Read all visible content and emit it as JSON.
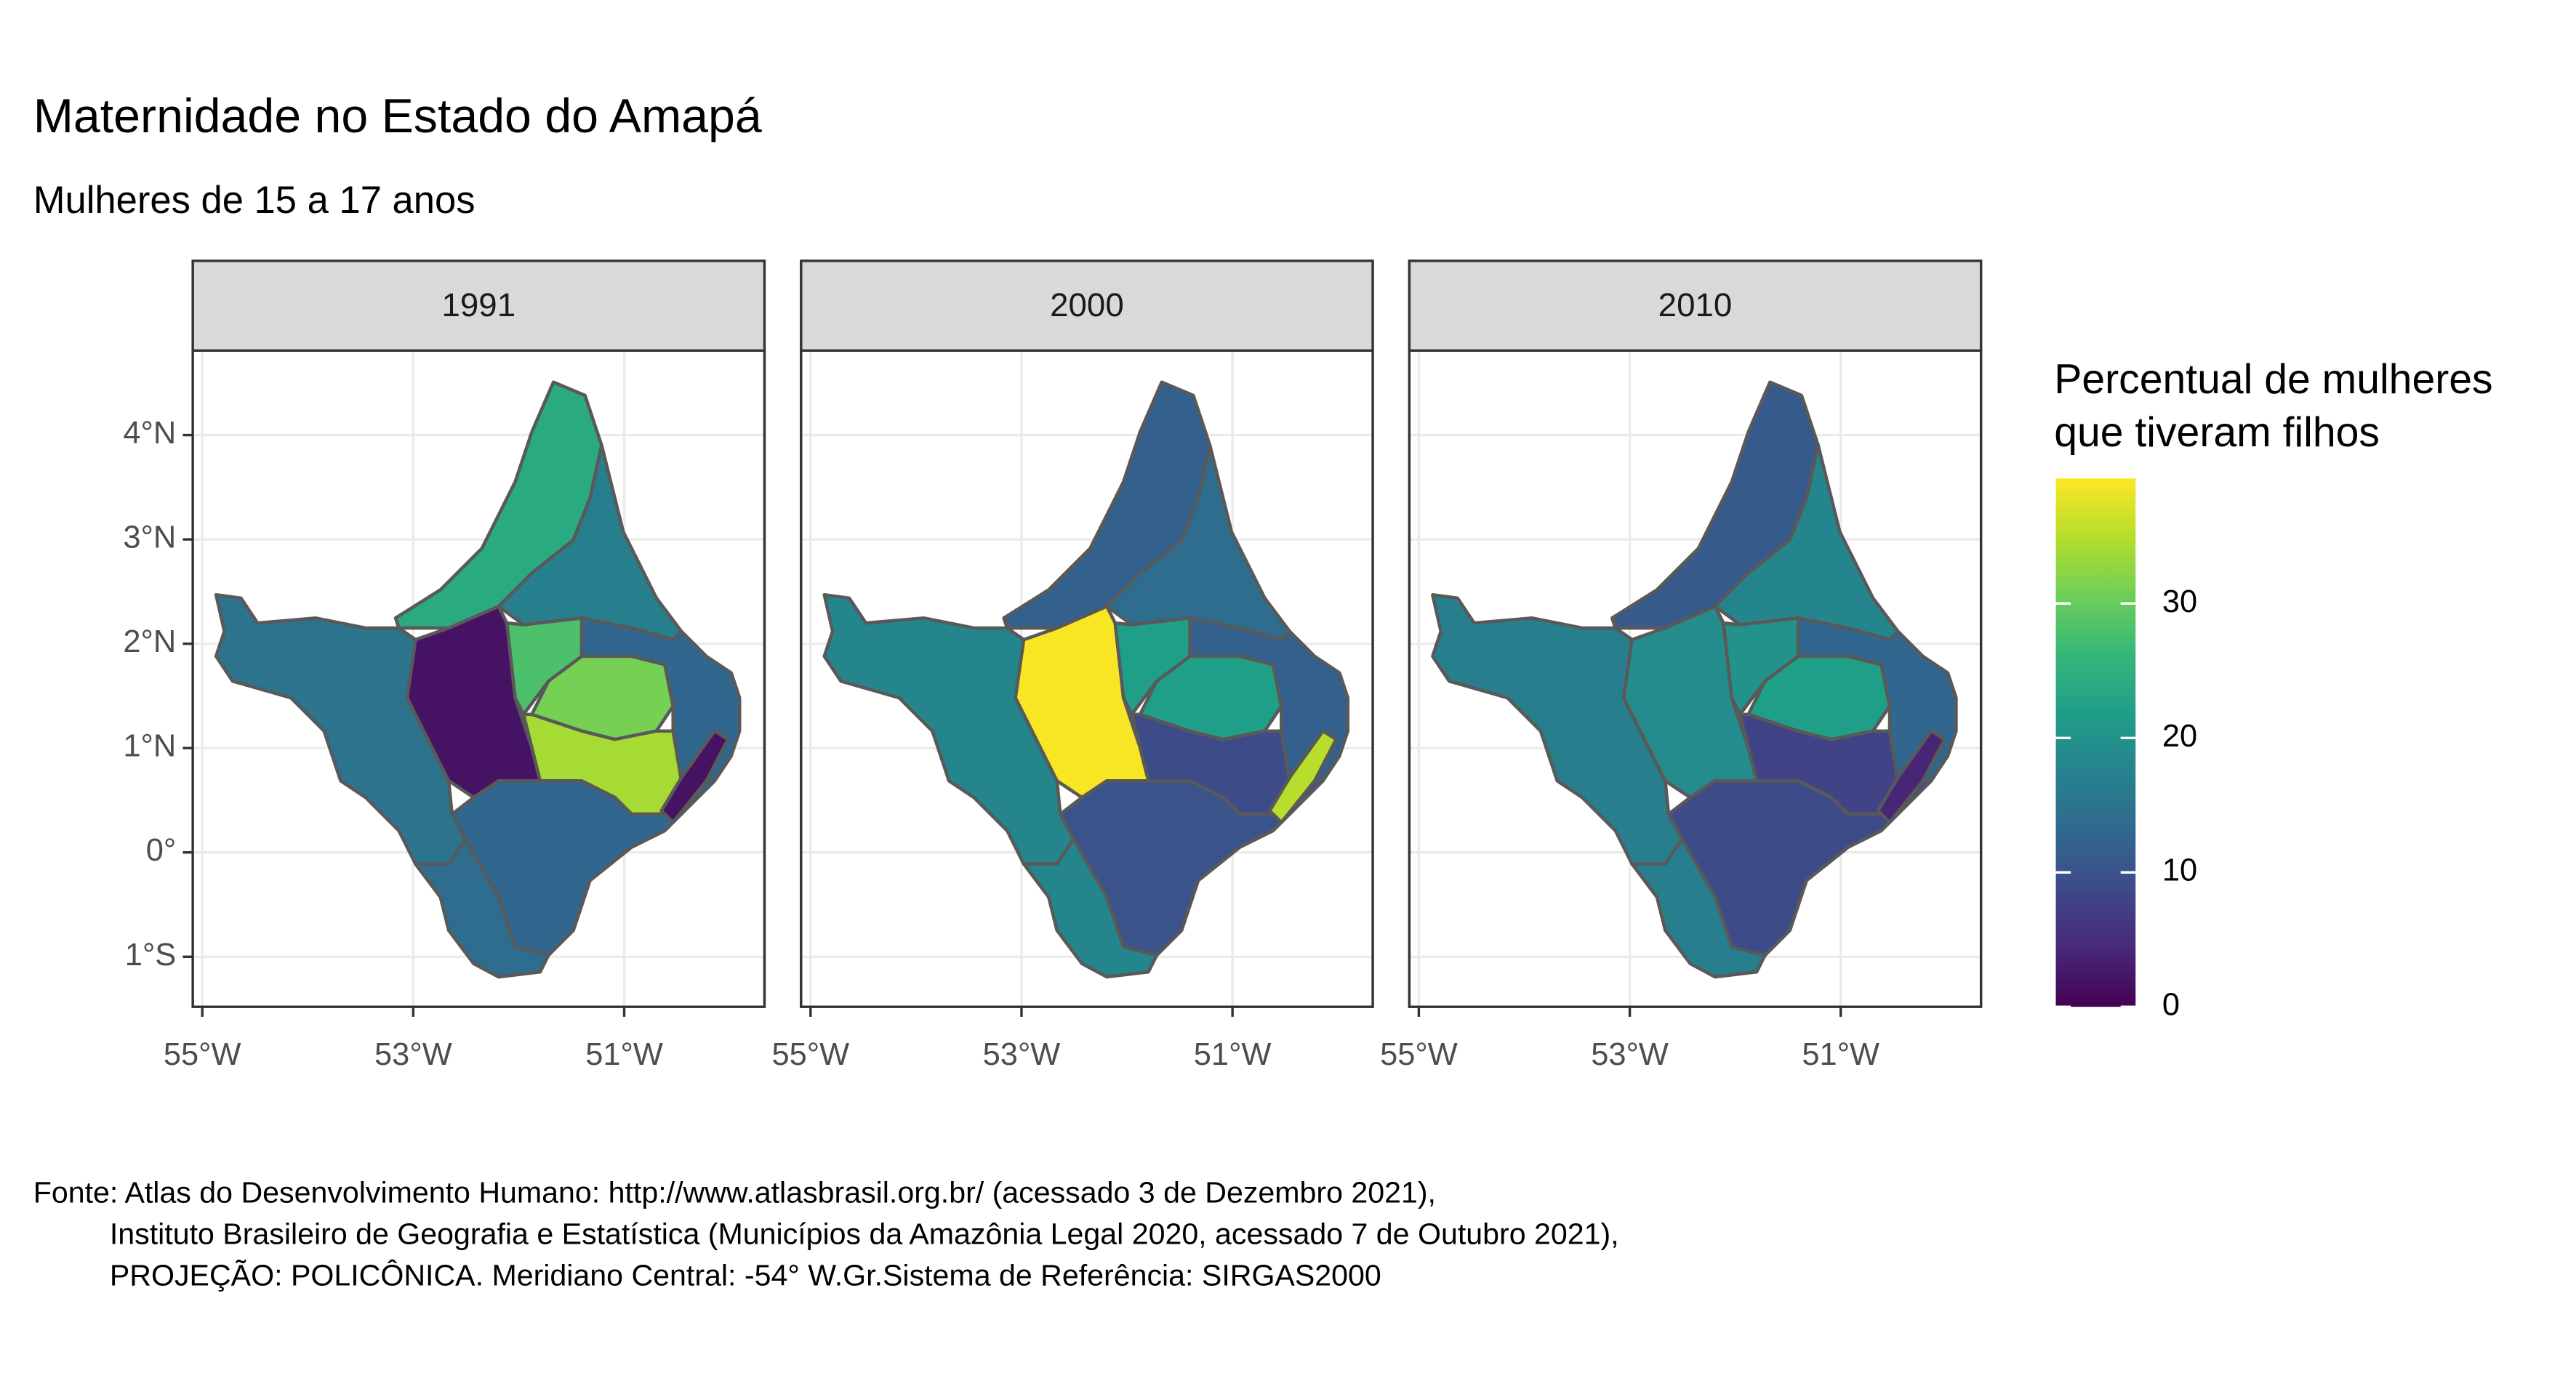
{
  "chart_data": {
    "type": "choropleth",
    "title": "Maternidade  no Estado do Amapá",
    "subtitle": "Mulheres de 15 a 17 anos",
    "facets": [
      {
        "label": "1991",
        "values": [
          24,
          17,
          15,
          2,
          28,
          31,
          13,
          34,
          13,
          14,
          2
        ]
      },
      {
        "label": "2000",
        "values": [
          12,
          14,
          18,
          39,
          22,
          22,
          12,
          9,
          10,
          18,
          35
        ]
      },
      {
        "label": "2010",
        "values": [
          11,
          18,
          17,
          19,
          20,
          22,
          13,
          8,
          9,
          17,
          4
        ]
      }
    ],
    "xlim": [
      -55.09,
      -49.67
    ],
    "xticks": [
      {
        "value": -55,
        "label": "55°W"
      },
      {
        "value": -53,
        "label": "53°W"
      },
      {
        "value": -51,
        "label": "51°W"
      }
    ],
    "ylim": [
      -1.48,
      4.81
    ],
    "yticks": [
      {
        "value": 4,
        "label": "4°N"
      },
      {
        "value": 3,
        "label": "3°N"
      },
      {
        "value": 2,
        "label": "2°N"
      },
      {
        "value": 1,
        "label": "1°N"
      },
      {
        "value": 0,
        "label": "0°"
      },
      {
        "value": -1,
        "label": "1°S"
      }
    ],
    "grid": true,
    "legend": {
      "title_lines": [
        "Percentual de mulheres",
        "que tiveram filhos"
      ],
      "lim": [
        0,
        39.3
      ],
      "ticks": [
        0,
        10,
        20,
        30
      ],
      "colormap": "viridis"
    },
    "caption": [
      "Fonte: Atlas do Desenvolvimento Humano: http://www.atlasbrasil.org.br/ (acessado 3 de Dezembro 2021),",
      "Instituto Brasileiro de Geografia e Estatística (Municípios da Amazônia Legal 2020, acessado 7 de Outubro 2021),",
      "PROJEÇÃO: POLICÔNICA. Meridiano Central: -54° W.Gr.Sistema de Referência: SIRGAS2000"
    ]
  }
}
